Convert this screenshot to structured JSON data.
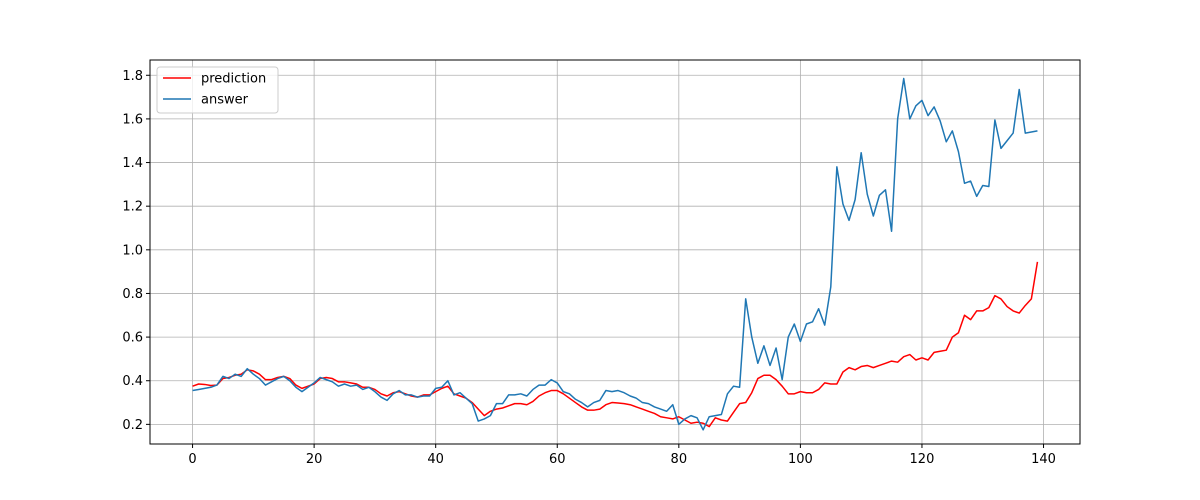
{
  "chart_data": {
    "type": "line",
    "title": "",
    "xlabel": "",
    "ylabel": "",
    "xlim": [
      -7,
      146
    ],
    "ylim": [
      0.11,
      1.87
    ],
    "xticks": [
      0,
      20,
      40,
      60,
      80,
      100,
      120,
      140
    ],
    "yticks": [
      0.2,
      0.4,
      0.6,
      0.8,
      1.0,
      1.2,
      1.4,
      1.6,
      1.8
    ],
    "grid": true,
    "legend_position": "top-left",
    "series": [
      {
        "name": "prediction",
        "color": "#ff0000",
        "values": [
          0.375,
          0.385,
          0.383,
          0.378,
          0.38,
          0.41,
          0.415,
          0.425,
          0.43,
          0.45,
          0.445,
          0.43,
          0.405,
          0.405,
          0.415,
          0.42,
          0.41,
          0.38,
          0.365,
          0.375,
          0.385,
          0.41,
          0.415,
          0.41,
          0.395,
          0.395,
          0.39,
          0.385,
          0.37,
          0.37,
          0.36,
          0.34,
          0.33,
          0.345,
          0.35,
          0.34,
          0.33,
          0.325,
          0.335,
          0.335,
          0.35,
          0.365,
          0.375,
          0.34,
          0.33,
          0.32,
          0.3,
          0.27,
          0.24,
          0.26,
          0.27,
          0.275,
          0.285,
          0.295,
          0.295,
          0.29,
          0.305,
          0.33,
          0.345,
          0.355,
          0.355,
          0.34,
          0.32,
          0.3,
          0.28,
          0.265,
          0.265,
          0.27,
          0.29,
          0.3,
          0.298,
          0.295,
          0.29,
          0.28,
          0.27,
          0.26,
          0.25,
          0.235,
          0.23,
          0.225,
          0.235,
          0.22,
          0.205,
          0.21,
          0.205,
          0.19,
          0.23,
          0.22,
          0.215,
          0.255,
          0.295,
          0.3,
          0.345,
          0.41,
          0.425,
          0.425,
          0.405,
          0.375,
          0.34,
          0.34,
          0.35,
          0.345,
          0.345,
          0.36,
          0.39,
          0.385,
          0.385,
          0.44,
          0.46,
          0.45,
          0.465,
          0.47,
          0.46,
          0.47,
          0.48,
          0.49,
          0.485,
          0.51,
          0.52,
          0.495,
          0.505,
          0.495,
          0.53,
          0.535,
          0.54,
          0.6,
          0.62,
          0.7,
          0.68,
          0.72,
          0.72,
          0.735,
          0.79,
          0.775,
          0.74,
          0.72,
          0.71,
          0.745,
          0.775,
          0.945
        ]
      },
      {
        "name": "answer",
        "color": "#1f77b4",
        "values": [
          0.355,
          0.36,
          0.365,
          0.37,
          0.38,
          0.42,
          0.41,
          0.43,
          0.42,
          0.455,
          0.43,
          0.41,
          0.38,
          0.395,
          0.41,
          0.42,
          0.4,
          0.37,
          0.35,
          0.37,
          0.39,
          0.415,
          0.405,
          0.395,
          0.375,
          0.385,
          0.375,
          0.38,
          0.36,
          0.37,
          0.35,
          0.325,
          0.31,
          0.34,
          0.355,
          0.335,
          0.335,
          0.325,
          0.33,
          0.33,
          0.365,
          0.37,
          0.4,
          0.335,
          0.345,
          0.32,
          0.295,
          0.215,
          0.225,
          0.24,
          0.295,
          0.295,
          0.335,
          0.335,
          0.34,
          0.33,
          0.36,
          0.38,
          0.38,
          0.405,
          0.39,
          0.35,
          0.34,
          0.315,
          0.3,
          0.28,
          0.3,
          0.31,
          0.355,
          0.35,
          0.355,
          0.345,
          0.33,
          0.32,
          0.3,
          0.295,
          0.28,
          0.27,
          0.26,
          0.29,
          0.2,
          0.225,
          0.24,
          0.23,
          0.175,
          0.235,
          0.24,
          0.245,
          0.34,
          0.375,
          0.37,
          0.775,
          0.6,
          0.48,
          0.56,
          0.47,
          0.55,
          0.405,
          0.6,
          0.66,
          0.58,
          0.66,
          0.67,
          0.73,
          0.655,
          0.83,
          1.38,
          1.21,
          1.135,
          1.23,
          1.445,
          1.255,
          1.155,
          1.25,
          1.275,
          1.085,
          1.6,
          1.785,
          1.6,
          1.66,
          1.685,
          1.615,
          1.655,
          1.59,
          1.495,
          1.545,
          1.45,
          1.305,
          1.315,
          1.245,
          1.295,
          1.29,
          1.595,
          1.465,
          1.5,
          1.535,
          1.735,
          1.535,
          1.54,
          1.545
        ]
      }
    ]
  }
}
